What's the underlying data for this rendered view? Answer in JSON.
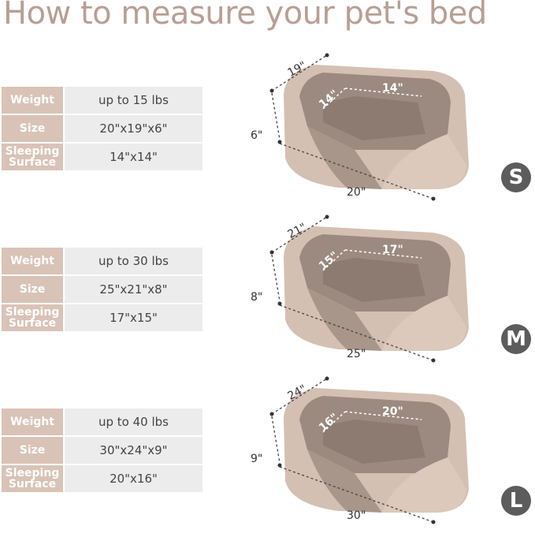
{
  "title": "How to measure your pet's bed",
  "sizes": [
    {
      "badge": "S",
      "rows": [
        {
          "label": "Weight",
          "value": "up to 15 lbs"
        },
        {
          "label": "Size",
          "value": "20\"x19\"x6\""
        },
        {
          "label": "Sleeping Surface",
          "value": "14\"x14\""
        }
      ],
      "dims": {
        "depth": "19\"",
        "height": "6\"",
        "width": "20\"",
        "inner_depth": "14\"",
        "inner_width": "14\""
      }
    },
    {
      "badge": "M",
      "rows": [
        {
          "label": "Weight",
          "value": "up to 30 lbs"
        },
        {
          "label": "Size",
          "value": "25\"x21\"x8\""
        },
        {
          "label": "Sleeping Surface",
          "value": "17\"x15\""
        }
      ],
      "dims": {
        "depth": "21\"",
        "height": "8\"",
        "width": "25\"",
        "inner_depth": "15\"",
        "inner_width": "17\""
      }
    },
    {
      "badge": "L",
      "rows": [
        {
          "label": "Weight",
          "value": "up to 40 lbs"
        },
        {
          "label": "Size",
          "value": "30\"x24\"x9\""
        },
        {
          "label": "Sleeping Surface",
          "value": "20\"x16\""
        }
      ],
      "dims": {
        "depth": "24\"",
        "height": "9\"",
        "width": "30\"",
        "inner_depth": "16\"",
        "inner_width": "20\""
      }
    }
  ],
  "colors": {
    "title": "#b89f93",
    "label_cell": "#d9c3b7",
    "value_cell": "#ececec",
    "badge": "#5c5c5c",
    "bed_outer": "#d4c0b2",
    "bed_fur": "#9c8a80"
  }
}
